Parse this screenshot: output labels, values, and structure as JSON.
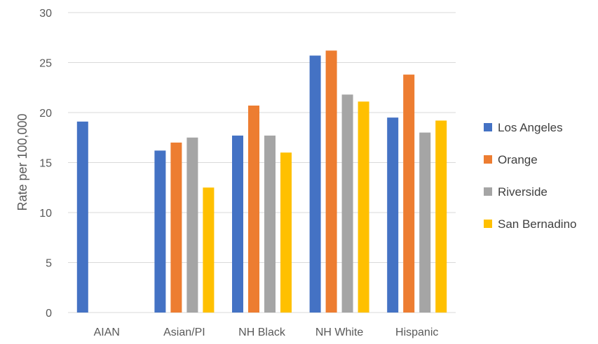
{
  "chart_data": {
    "type": "bar",
    "title": "",
    "xlabel": "",
    "ylabel": "Rate per 100,000",
    "ylim": [
      0,
      30
    ],
    "yticks": [
      0,
      5,
      10,
      15,
      20,
      25,
      30
    ],
    "grid": true,
    "legend_position": "right",
    "categories": [
      "AIAN",
      "Asian/PI",
      "NH Black",
      "NH White",
      "Hispanic"
    ],
    "series": [
      {
        "name": "Los Angeles",
        "color": "#4472C4",
        "values": [
          19.1,
          16.2,
          17.7,
          25.7,
          19.5
        ]
      },
      {
        "name": "Orange",
        "color": "#ED7D31",
        "values": [
          null,
          17.0,
          20.7,
          26.2,
          23.8
        ]
      },
      {
        "name": "Riverside",
        "color": "#A5A5A5",
        "values": [
          null,
          17.5,
          17.7,
          21.8,
          18.0
        ]
      },
      {
        "name": "San Bernadino",
        "color": "#FFC000",
        "values": [
          null,
          12.5,
          16.0,
          21.1,
          19.2
        ]
      }
    ]
  }
}
